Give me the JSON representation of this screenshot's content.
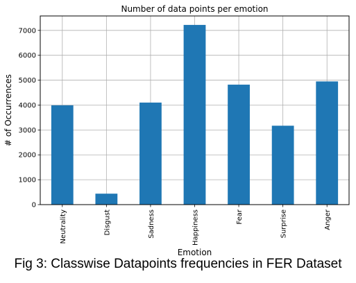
{
  "chart_data": {
    "type": "bar",
    "title": "Number of data points per emotion",
    "xlabel": "Emotion",
    "ylabel": "# of Occurrences",
    "categories": [
      "Neutrality",
      "Disgust",
      "Sadness",
      "Happiness",
      "Fear",
      "Surprise",
      "Anger"
    ],
    "values": [
      3990,
      440,
      4100,
      7220,
      4820,
      3170,
      4950
    ],
    "ylim": [
      0,
      7580
    ],
    "yticks": [
      0,
      1000,
      2000,
      3000,
      4000,
      5000,
      6000,
      7000
    ],
    "grid": true,
    "bar_color": "#1f77b4"
  },
  "figure": {
    "caption": "Fig 3: Classwise Datapoints frequencies in FER Dataset"
  }
}
